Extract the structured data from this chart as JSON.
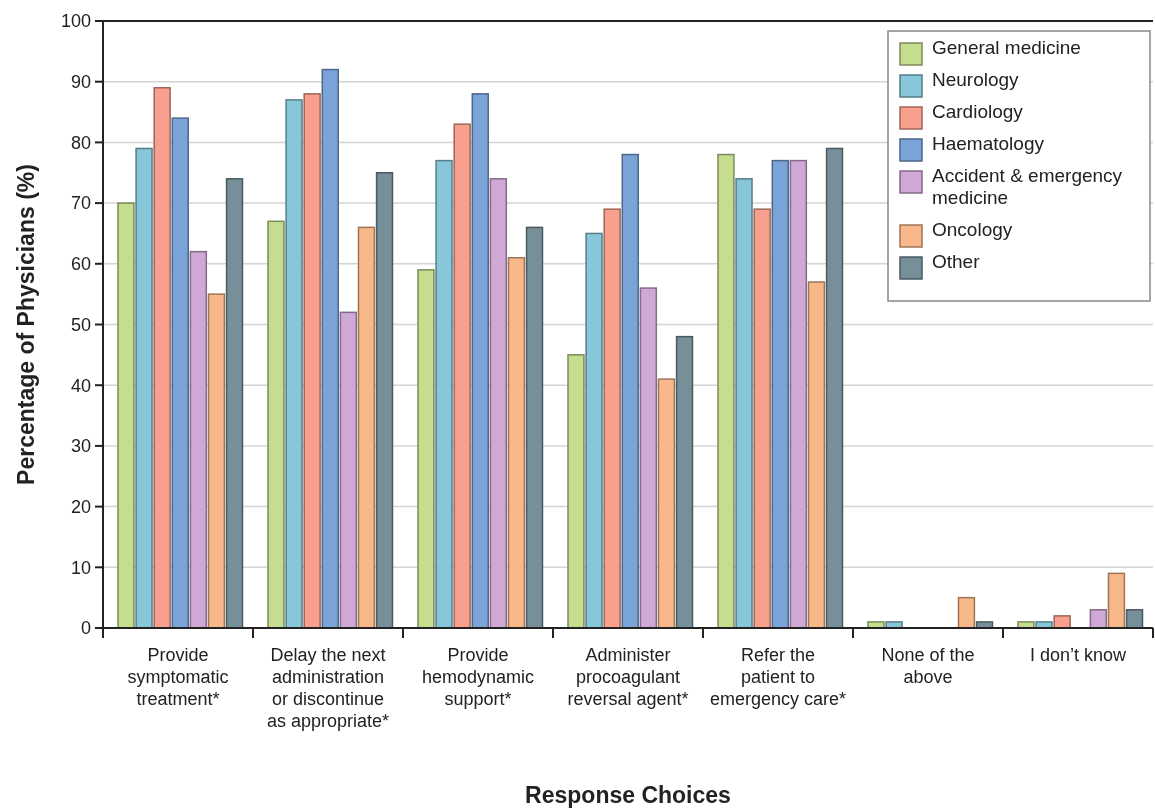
{
  "chart_data": {
    "type": "bar",
    "xlabel": "Response Choices",
    "ylabel": "Percentage of Physicians (%)",
    "categories": [
      "Provide symptomatic treatment*",
      "Delay the next administration or discontinue as appropriate*",
      "Provide hemodynamic support*",
      "Administer procoagulant reversal agent*",
      "Refer the patient to emergency care*",
      "None of the above",
      "I don’t know"
    ],
    "series": [
      {
        "name": "General medicine",
        "color": "#c5dd8e",
        "values": [
          70,
          67,
          59,
          45,
          78,
          1,
          1
        ]
      },
      {
        "name": "Neurology",
        "color": "#88c6da",
        "values": [
          79,
          87,
          77,
          65,
          74,
          1,
          1
        ]
      },
      {
        "name": "Cardiology",
        "color": "#f8a08d",
        "values": [
          89,
          88,
          83,
          69,
          69,
          0,
          2
        ]
      },
      {
        "name": "Haematology",
        "color": "#7aa4d8",
        "values": [
          84,
          92,
          88,
          78,
          77,
          0,
          0
        ]
      },
      {
        "name": "Accident & emergency medicine",
        "color": "#d0a8d6",
        "values": [
          62,
          52,
          74,
          56,
          77,
          0,
          3
        ]
      },
      {
        "name": "Oncology",
        "color": "#f8b88a",
        "values": [
          55,
          66,
          61,
          41,
          57,
          5,
          9
        ]
      },
      {
        "name": "Other",
        "color": "#768f99",
        "values": [
          74,
          75,
          66,
          48,
          79,
          1,
          3
        ]
      }
    ],
    "ylim": [
      0,
      100
    ],
    "yticks": [
      0,
      10,
      20,
      30,
      40,
      50,
      60,
      70,
      80,
      90,
      100
    ],
    "grid": "y",
    "legend": "top right"
  }
}
